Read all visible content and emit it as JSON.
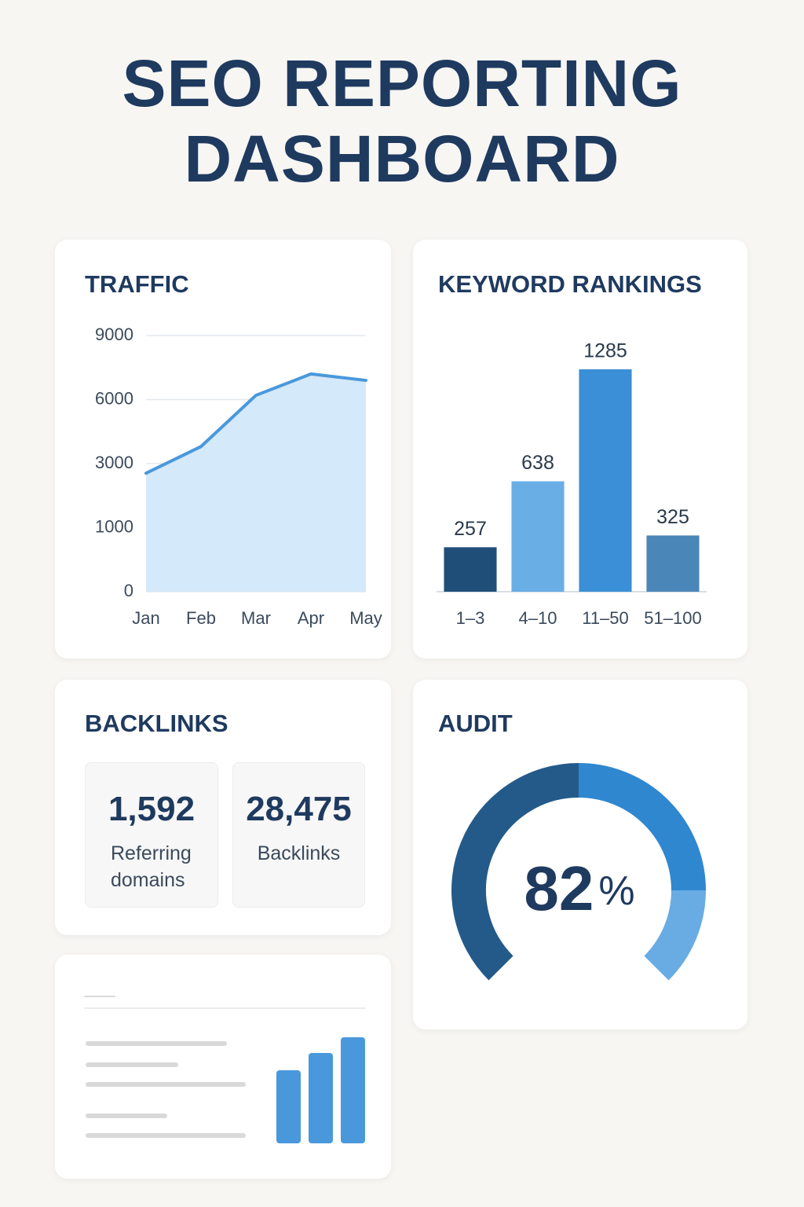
{
  "title": "SEO REPORTING DASHBOARD",
  "chart_data": [
    {
      "type": "area",
      "title": "TRAFFIC",
      "categories": [
        "Jan",
        "Feb",
        "Mar",
        "Apr",
        "May"
      ],
      "values": [
        2700,
        3800,
        6200,
        7200,
        6900
      ],
      "color": "#4a98dc",
      "fill": "#d4e9f9",
      "ylim": [
        0,
        9000
      ],
      "yticks": [
        0,
        1000,
        3000,
        6000,
        9000
      ],
      "grid": true
    },
    {
      "type": "bar",
      "title": "KEYWORD RANKINGS",
      "categories": [
        "1–3",
        "4–10",
        "11–50",
        "51–100"
      ],
      "values": [
        257,
        638,
        1285,
        325
      ],
      "colors": [
        "#1f4e79",
        "#6aaee6",
        "#3a8fd6",
        "#4a86b8"
      ]
    }
  ],
  "backlinks": {
    "title": "BACKLINKS",
    "stats": [
      {
        "value": "1,592",
        "label": "Referring domains"
      },
      {
        "value": "28,475",
        "label": "Backlinks"
      }
    ]
  },
  "audit": {
    "title": "AUDIT",
    "value": 82,
    "unit": "%"
  }
}
